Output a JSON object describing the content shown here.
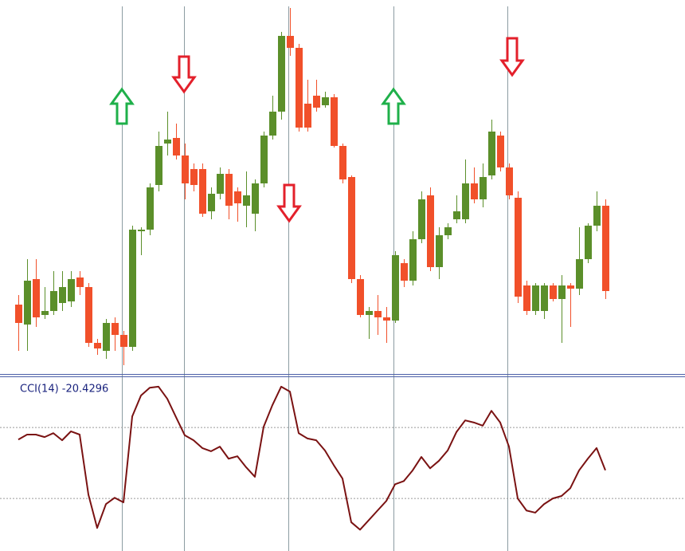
{
  "chart_data": [
    {
      "type": "candlestick",
      "up_color": "#5b8f2a",
      "down_color": "#f1502a",
      "ylim": [
        0,
        470
      ],
      "open": [
        88,
        63,
        120,
        75,
        80,
        90,
        92,
        122,
        110,
        40,
        30,
        65,
        50,
        35,
        180,
        182,
        238,
        290,
        297,
        275,
        258,
        258,
        205,
        227,
        252,
        230,
        212,
        202,
        240,
        300,
        330,
        425,
        410,
        340,
        350,
        338,
        348,
        287,
        248,
        120,
        75,
        80,
        72,
        68,
        140,
        118,
        170,
        225,
        135,
        175,
        195,
        195,
        240,
        220,
        250,
        300,
        260,
        222,
        112,
        80,
        80,
        112,
        95,
        112,
        108,
        145,
        187,
        212
      ],
      "high": [
        100,
        145,
        145,
        110,
        130,
        130,
        130,
        130,
        115,
        45,
        70,
        72,
        55,
        187,
        185,
        240,
        305,
        330,
        315,
        290,
        265,
        265,
        235,
        260,
        258,
        235,
        255,
        245,
        305,
        350,
        430,
        460,
        415,
        370,
        370,
        355,
        352,
        290,
        250,
        125,
        85,
        100,
        85,
        155,
        145,
        180,
        230,
        235,
        185,
        190,
        225,
        270,
        260,
        265,
        320,
        305,
        265,
        230,
        118,
        115,
        115,
        115,
        125,
        115,
        185,
        190,
        230,
        220
      ],
      "low": [
        30,
        30,
        60,
        70,
        75,
        80,
        85,
        100,
        35,
        25,
        20,
        30,
        12,
        30,
        150,
        175,
        230,
        275,
        270,
        220,
        230,
        198,
        195,
        220,
        195,
        192,
        185,
        180,
        235,
        295,
        320,
        400,
        305,
        305,
        330,
        335,
        285,
        240,
        115,
        72,
        45,
        50,
        40,
        65,
        110,
        112,
        165,
        130,
        120,
        170,
        190,
        190,
        215,
        210,
        245,
        255,
        220,
        90,
        75,
        75,
        70,
        92,
        40,
        60,
        100,
        140,
        180,
        95
      ],
      "close": [
        65,
        118,
        72,
        80,
        105,
        110,
        120,
        110,
        40,
        33,
        65,
        50,
        35,
        182,
        182,
        235,
        287,
        295,
        275,
        240,
        238,
        202,
        227,
        252,
        212,
        215,
        225,
        240,
        300,
        330,
        425,
        410,
        310,
        310,
        335,
        348,
        287,
        245,
        120,
        75,
        80,
        72,
        68,
        150,
        118,
        170,
        220,
        135,
        175,
        185,
        205,
        240,
        220,
        248,
        305,
        260,
        225,
        98,
        80,
        112,
        112,
        95,
        112,
        108,
        145,
        187,
        212,
        105
      ]
    },
    {
      "type": "line",
      "title": "CCI(14) -20.4296",
      "color": "#7a1212",
      "ylim": [
        -248,
        244
      ],
      "levels": [
        100,
        -100
      ],
      "values": [
        66,
        80,
        80,
        73,
        84,
        64,
        89,
        80,
        -89,
        -183,
        -116,
        -98,
        -111,
        131,
        190,
        212,
        215,
        181,
        129,
        78,
        64,
        42,
        33,
        46,
        12,
        19,
        -12,
        -39,
        102,
        163,
        215,
        201,
        84,
        69,
        64,
        35,
        -6,
        -44,
        -167,
        -188,
        -161,
        -134,
        -107,
        -60,
        -51,
        -21,
        17,
        -15,
        6,
        35,
        87,
        120,
        114,
        105,
        147,
        114,
        46,
        -100,
        -134,
        -140,
        -116,
        -100,
        -93,
        -71,
        -21,
        12,
        42,
        -20.4296
      ]
    }
  ]
}
